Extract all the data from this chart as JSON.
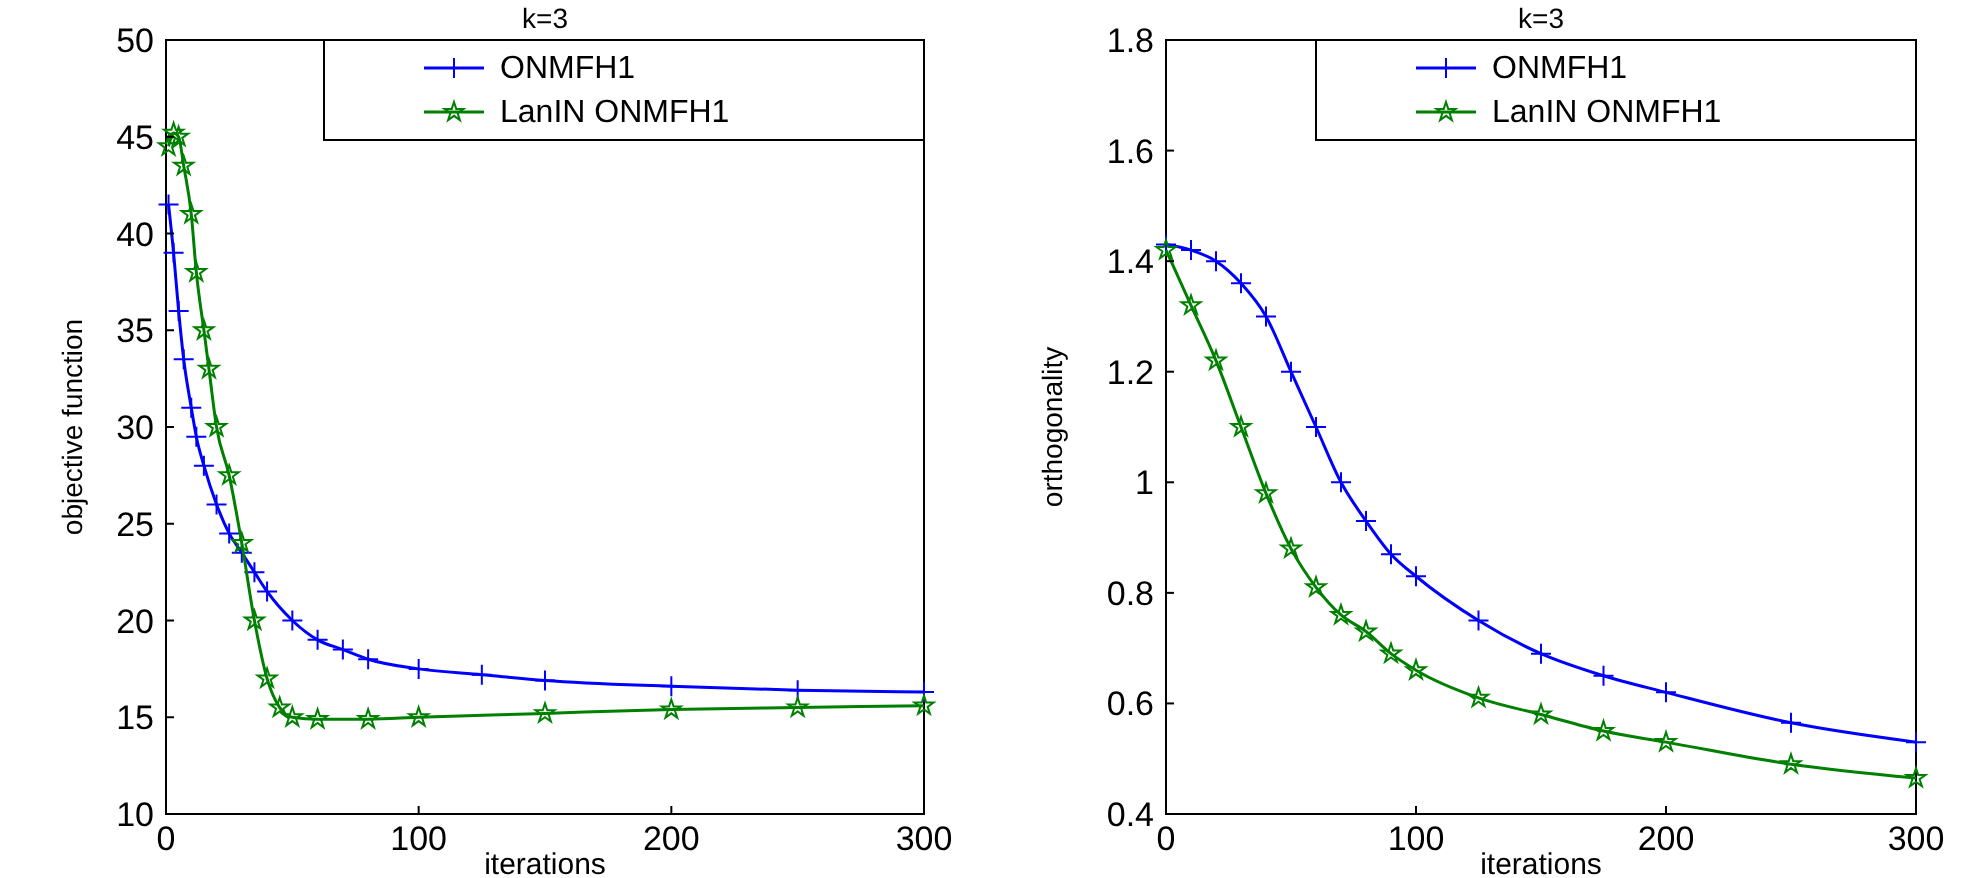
{
  "chart_data": [
    {
      "type": "line",
      "title": "k=3",
      "xlabel": "iterations",
      "ylabel": "objective function",
      "xlim": [
        0,
        300
      ],
      "ylim": [
        10,
        50
      ],
      "xticks": [
        0,
        100,
        200,
        300
      ],
      "yticks": [
        10,
        15,
        20,
        25,
        30,
        35,
        40,
        45,
        50
      ],
      "grid": false,
      "legend": "top right",
      "series": [
        {
          "name": "ONMFH1",
          "color": "#0000ff",
          "marker": "cross",
          "x": [
            1,
            3,
            5,
            7,
            10,
            12,
            15,
            20,
            25,
            30,
            35,
            40,
            50,
            60,
            70,
            80,
            100,
            125,
            150,
            200,
            250,
            300
          ],
          "values": [
            41.5,
            39,
            36,
            33.5,
            31,
            29.5,
            28,
            26,
            24.5,
            23.5,
            22.5,
            21.5,
            20,
            19,
            18.5,
            18,
            17.5,
            17.2,
            16.9,
            16.6,
            16.4,
            16.3
          ]
        },
        {
          "name": "LanIN ONMFH1",
          "color": "#008000",
          "marker": "star",
          "x": [
            1,
            3,
            5,
            7,
            10,
            12,
            15,
            17,
            20,
            25,
            30,
            35,
            40,
            45,
            50,
            60,
            80,
            100,
            150,
            200,
            250,
            300
          ],
          "values": [
            44.5,
            45.2,
            45,
            43.5,
            41,
            38,
            35,
            33,
            30,
            27.5,
            24,
            20,
            17,
            15.5,
            15,
            14.9,
            14.9,
            15,
            15.2,
            15.4,
            15.5,
            15.6
          ]
        }
      ]
    },
    {
      "type": "line",
      "title": "k=3",
      "xlabel": "iterations",
      "ylabel": "orthogonality",
      "xlim": [
        0,
        300
      ],
      "ylim": [
        0.4,
        1.8
      ],
      "xticks": [
        0,
        100,
        200,
        300
      ],
      "yticks": [
        0.4,
        0.6,
        0.8,
        1,
        1.2,
        1.4,
        1.6,
        1.8
      ],
      "grid": false,
      "legend": "top right",
      "series": [
        {
          "name": "ONMFH1",
          "color": "#0000ff",
          "marker": "cross",
          "x": [
            0,
            10,
            20,
            30,
            40,
            50,
            60,
            70,
            80,
            90,
            100,
            125,
            150,
            175,
            200,
            250,
            300
          ],
          "values": [
            1.43,
            1.42,
            1.4,
            1.36,
            1.3,
            1.2,
            1.1,
            1.0,
            0.93,
            0.87,
            0.83,
            0.75,
            0.69,
            0.65,
            0.62,
            0.565,
            0.53
          ]
        },
        {
          "name": "LanIN ONMFH1",
          "color": "#008000",
          "marker": "star",
          "x": [
            0,
            10,
            20,
            30,
            40,
            50,
            60,
            70,
            80,
            90,
            100,
            125,
            150,
            175,
            200,
            250,
            300
          ],
          "values": [
            1.42,
            1.32,
            1.22,
            1.1,
            0.98,
            0.88,
            0.81,
            0.76,
            0.73,
            0.69,
            0.66,
            0.61,
            0.58,
            0.55,
            0.53,
            0.49,
            0.465
          ]
        }
      ]
    }
  ]
}
